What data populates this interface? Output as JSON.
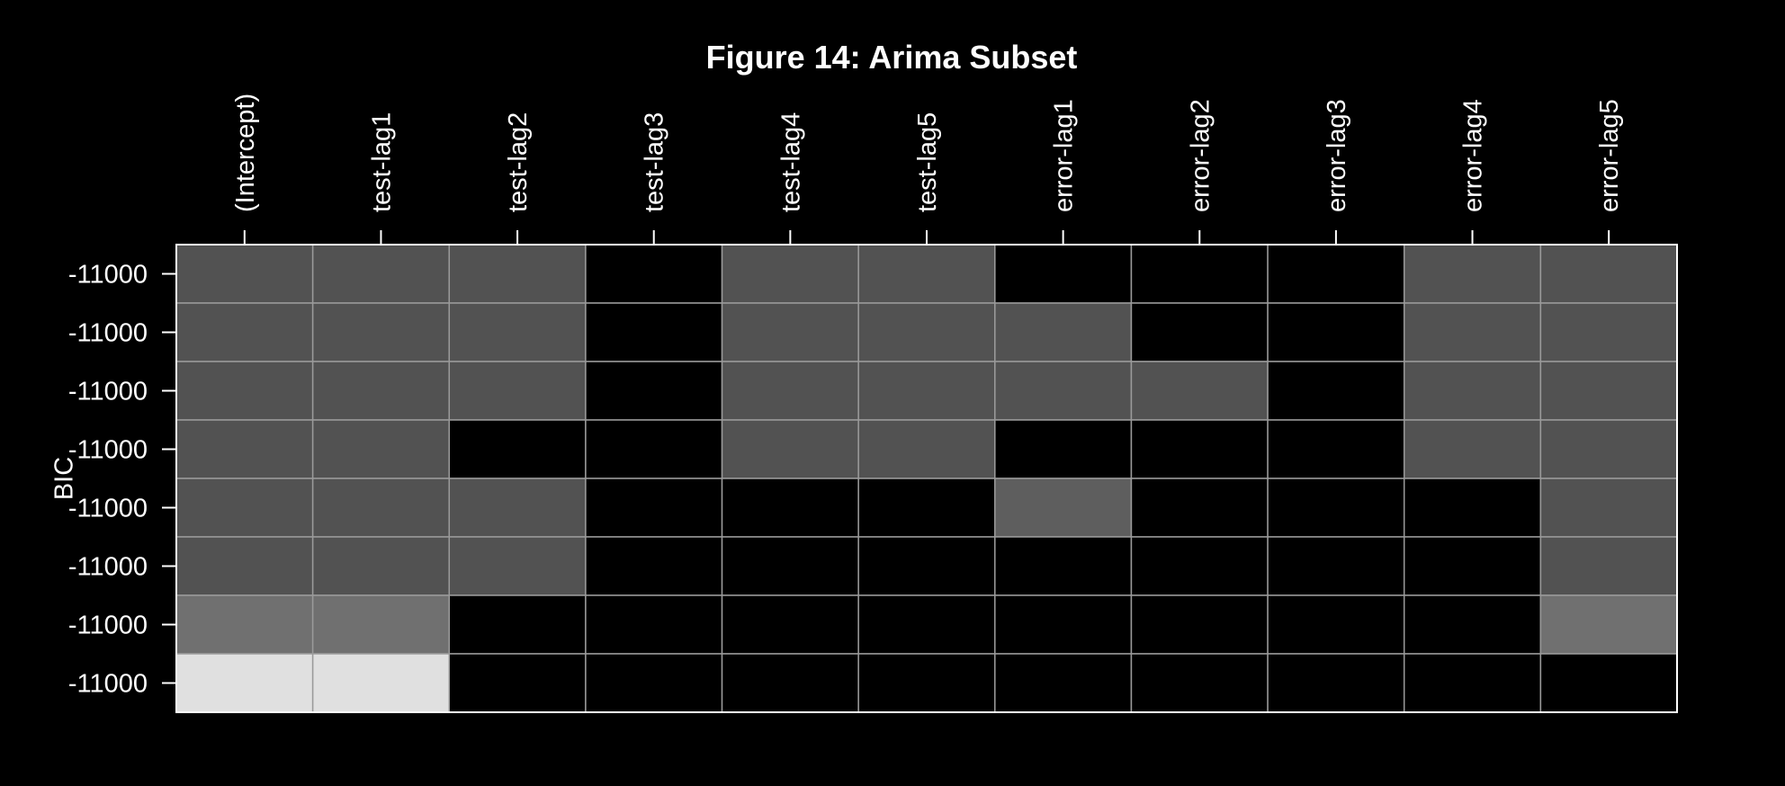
{
  "chart_data": {
    "type": "heatmap",
    "title": "Figure  14: Arima Subset",
    "ylabel": "BIC",
    "columns": [
      "(Intercept)",
      "test-lag1",
      "test-lag2",
      "test-lag3",
      "test-lag4",
      "test-lag5",
      "error-lag1",
      "error-lag2",
      "error-lag3",
      "error-lag4",
      "error-lag5"
    ],
    "row_labels": [
      "-11000",
      "-11000",
      "-11000",
      "-11000",
      "-11000",
      "-11000",
      "-11000",
      "-11000"
    ],
    "shade_scale": {
      "0": "#000000",
      "1": "#525252",
      "2": "#5e5e5e",
      "3": "#707070",
      "4": "#e0e0e0"
    },
    "matrix": [
      [
        1,
        1,
        1,
        0,
        1,
        1,
        0,
        0,
        0,
        1,
        1
      ],
      [
        1,
        1,
        1,
        0,
        1,
        1,
        1,
        0,
        0,
        1,
        1
      ],
      [
        1,
        1,
        1,
        0,
        1,
        1,
        1,
        1,
        0,
        1,
        1
      ],
      [
        1,
        1,
        0,
        0,
        1,
        1,
        0,
        0,
        0,
        1,
        1
      ],
      [
        1,
        1,
        1,
        0,
        0,
        0,
        2,
        0,
        0,
        0,
        1
      ],
      [
        1,
        1,
        1,
        0,
        0,
        0,
        0,
        0,
        0,
        0,
        1
      ],
      [
        3,
        3,
        0,
        0,
        0,
        0,
        0,
        0,
        0,
        0,
        3
      ],
      [
        4,
        4,
        0,
        0,
        0,
        0,
        0,
        0,
        0,
        0,
        0
      ]
    ],
    "grid": true,
    "legend": "none"
  }
}
